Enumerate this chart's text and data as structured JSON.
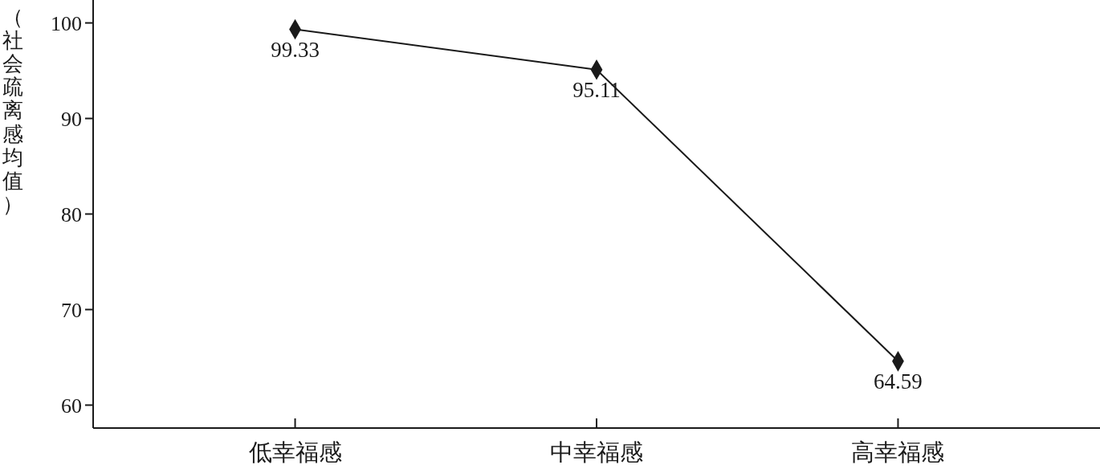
{
  "chart_data": {
    "type": "line",
    "ylabel": "（社会疏离感均值）",
    "categories": [
      "低幸福感",
      "中幸福感",
      "高幸福感"
    ],
    "series": [
      {
        "color": "#1a1a1a",
        "values": [
          99.33,
          95.11,
          64.59
        ]
      }
    ],
    "ylim": [
      57.6,
      102.4
    ],
    "yticks": [
      60,
      70,
      80,
      90,
      100
    ],
    "marker": "diamond",
    "line_style": "solid",
    "data_labels": true
  }
}
